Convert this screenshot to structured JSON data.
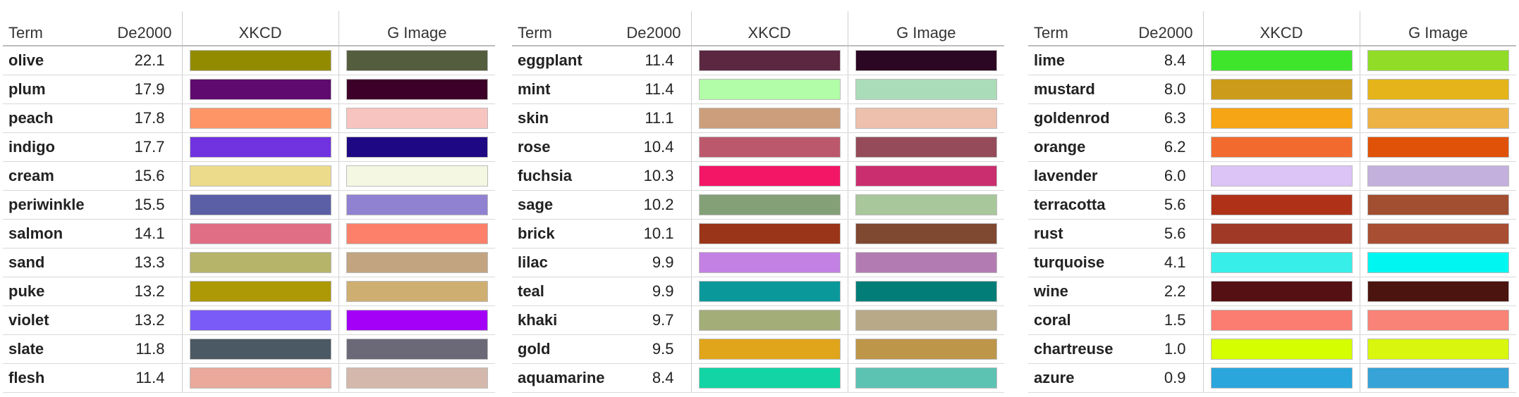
{
  "headers": {
    "term": "Term",
    "de": "De2000",
    "xkcd": "XKCD",
    "gimage": "G Image"
  },
  "tables": [
    {
      "rows": [
        {
          "term": "olive",
          "de": "22.1",
          "xkcd": "#928b00",
          "gimage": "#545e3e"
        },
        {
          "term": "plum",
          "de": "17.9",
          "xkcd": "#5e0a6e",
          "gimage": "#3d0029"
        },
        {
          "term": "peach",
          "de": "17.8",
          "xkcd": "#fd9567",
          "gimage": "#f8c4c0"
        },
        {
          "term": "indigo",
          "de": "17.7",
          "xkcd": "#7132e0",
          "gimage": "#1f0883"
        },
        {
          "term": "cream",
          "de": "15.6",
          "xkcd": "#eddb8c",
          "gimage": "#f4f8e2"
        },
        {
          "term": "periwinkle",
          "de": "15.5",
          "xkcd": "#5b5fa5",
          "gimage": "#9181d1"
        },
        {
          "term": "salmon",
          "de": "14.1",
          "xkcd": "#e06f85",
          "gimage": "#fd806a"
        },
        {
          "term": "sand",
          "de": "13.3",
          "xkcd": "#b6b36a",
          "gimage": "#c3a481"
        },
        {
          "term": "puke",
          "de": "13.2",
          "xkcd": "#ad9806",
          "gimage": "#cfae72"
        },
        {
          "term": "violet",
          "de": "13.2",
          "xkcd": "#7a5bf7",
          "gimage": "#a400f8"
        },
        {
          "term": "slate",
          "de": "11.8",
          "xkcd": "#4a5963",
          "gimage": "#6b6978"
        },
        {
          "term": "flesh",
          "de": "11.4",
          "xkcd": "#eaa99b",
          "gimage": "#d3b8ab"
        }
      ]
    },
    {
      "rows": [
        {
          "term": "eggplant",
          "de": "11.4",
          "xkcd": "#5c2740",
          "gimage": "#2c0723"
        },
        {
          "term": "mint",
          "de": "11.4",
          "xkcd": "#b2fda8",
          "gimage": "#abdcb9"
        },
        {
          "term": "skin",
          "de": "11.1",
          "xkcd": "#cc9e7c",
          "gimage": "#edbfad"
        },
        {
          "term": "rose",
          "de": "10.4",
          "xkcd": "#bc586c",
          "gimage": "#954b59"
        },
        {
          "term": "fuchsia",
          "de": "10.3",
          "xkcd": "#f31666",
          "gimage": "#cb2e6e"
        },
        {
          "term": "sage",
          "de": "10.2",
          "xkcd": "#84a077",
          "gimage": "#a8c79a"
        },
        {
          "term": "brick",
          "de": "10.1",
          "xkcd": "#9a3519",
          "gimage": "#7f4831"
        },
        {
          "term": "lilac",
          "de": "9.9",
          "xkcd": "#c381e4",
          "gimage": "#b27cb2"
        },
        {
          "term": "teal",
          "de": "9.9",
          "xkcd": "#0b989b",
          "gimage": "#037d78"
        },
        {
          "term": "khaki",
          "de": "9.7",
          "xkcd": "#a3ad78",
          "gimage": "#b8aa88"
        },
        {
          "term": "gold",
          "de": "9.5",
          "xkcd": "#e1a51c",
          "gimage": "#bd9649"
        },
        {
          "term": "aquamarine",
          "de": "8.4",
          "xkcd": "#13d4a4",
          "gimage": "#5cc3b2"
        }
      ]
    },
    {
      "rows": [
        {
          "term": "lime",
          "de": "8.4",
          "xkcd": "#3fe52b",
          "gimage": "#91dc27"
        },
        {
          "term": "mustard",
          "de": "8.0",
          "xkcd": "#cc9b1a",
          "gimage": "#e4b41a"
        },
        {
          "term": "goldenrod",
          "de": "6.3",
          "xkcd": "#f6a515",
          "gimage": "#edb244"
        },
        {
          "term": "orange",
          "de": "6.2",
          "xkcd": "#f26a2e",
          "gimage": "#e05208"
        },
        {
          "term": "lavender",
          "de": "6.0",
          "xkcd": "#dcc4f7",
          "gimage": "#c3b0dd"
        },
        {
          "term": "terracotta",
          "de": "5.6",
          "xkcd": "#af3218",
          "gimage": "#a24e30"
        },
        {
          "term": "rust",
          "de": "5.6",
          "xkcd": "#a03a26",
          "gimage": "#a74e33"
        },
        {
          "term": "turquoise",
          "de": "4.1",
          "xkcd": "#37efe8",
          "gimage": "#00f7f1"
        },
        {
          "term": "wine",
          "de": "2.2",
          "xkcd": "#551013",
          "gimage": "#4b140f"
        },
        {
          "term": "coral",
          "de": "1.5",
          "xkcd": "#fb7d72",
          "gimage": "#f88376"
        },
        {
          "term": "chartreuse",
          "de": "1.0",
          "xkcd": "#d5ff00",
          "gimage": "#d8f60e"
        },
        {
          "term": "azure",
          "de": "0.9",
          "xkcd": "#2aa6dc",
          "gimage": "#37a3d7"
        }
      ]
    }
  ]
}
